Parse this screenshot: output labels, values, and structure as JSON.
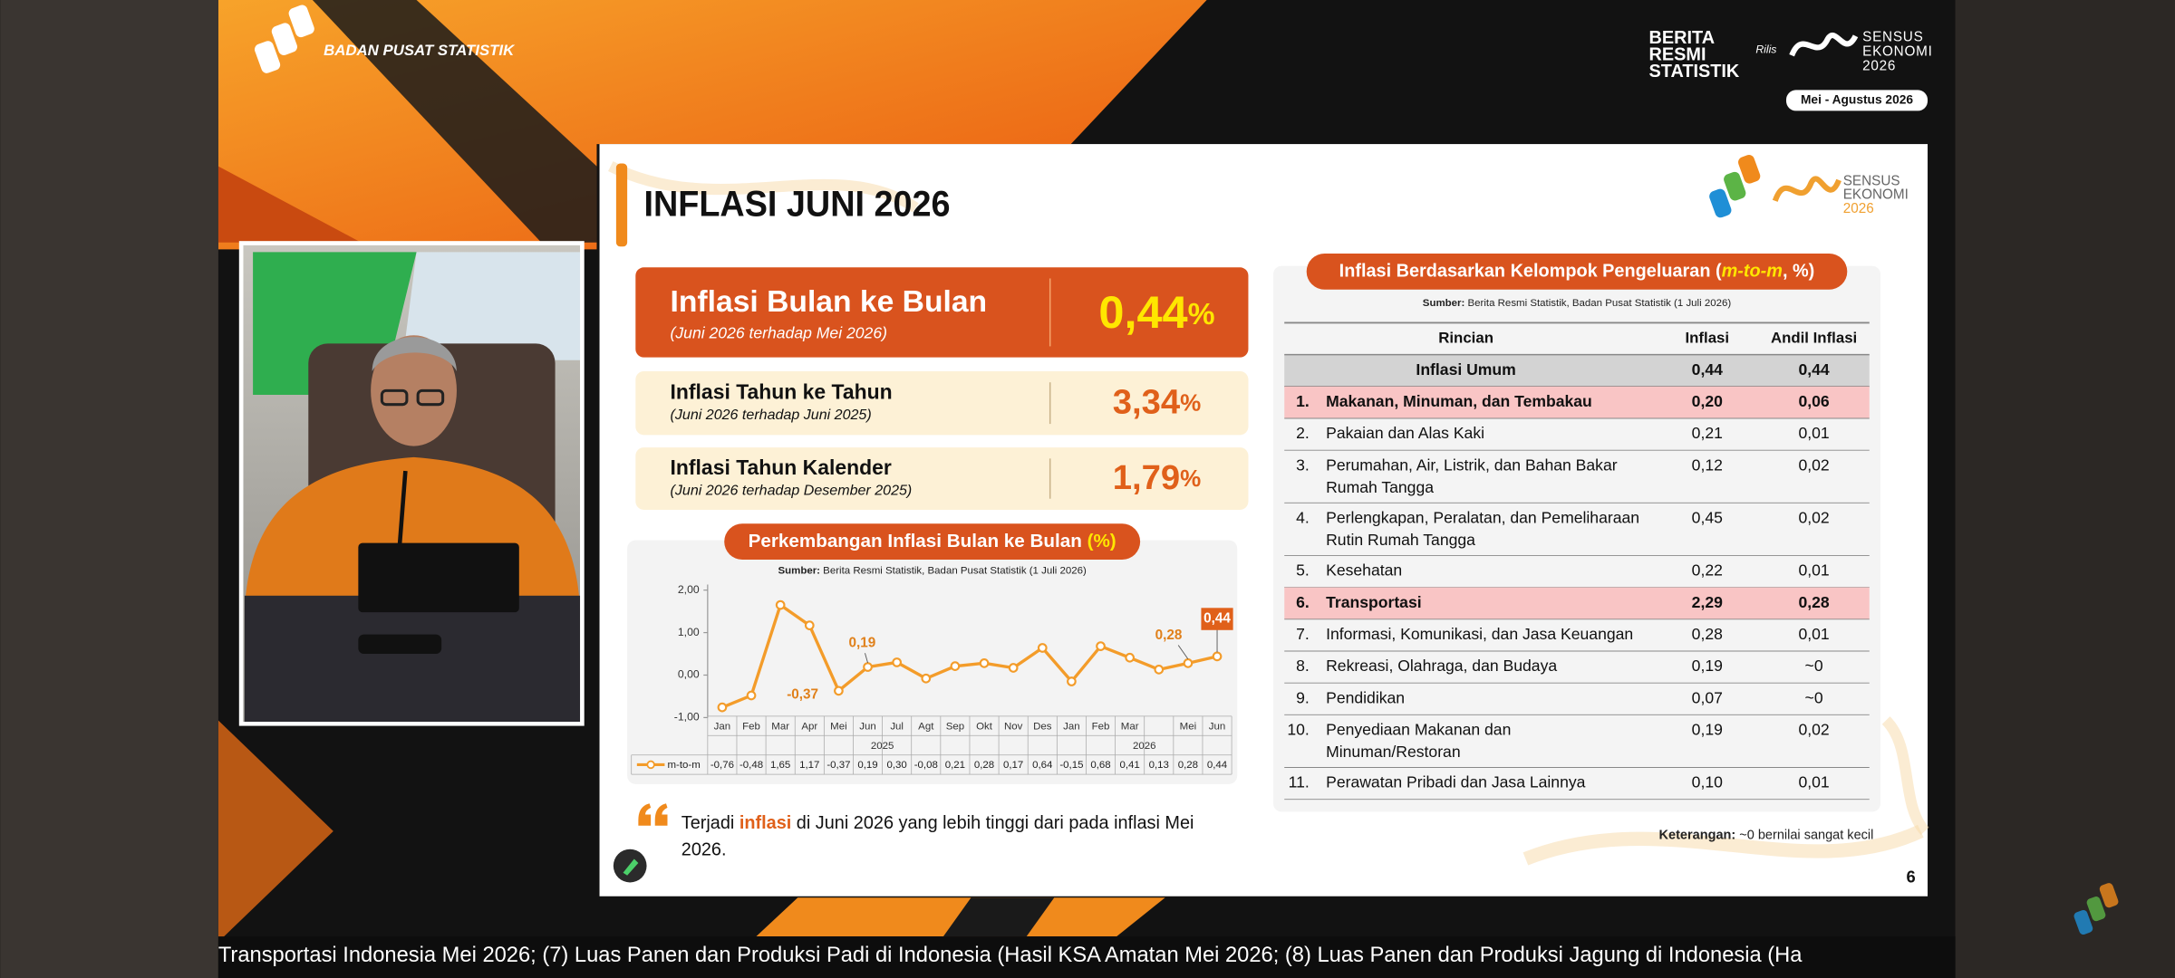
{
  "header": {
    "org": "BADAN PUSAT STATISTIK",
    "brs": [
      "BERITA",
      "RESMI",
      "STATISTIK"
    ],
    "rilis": "Rilis",
    "sensus": [
      "SENSUS",
      "EKONOMI",
      "2026"
    ],
    "period": "Mei - Agustus 2026"
  },
  "slide": {
    "title": "INFLASI JUNI 2026",
    "logo": [
      "SENSUS",
      "EKONOMI",
      "2026"
    ],
    "cards": [
      {
        "label": "Inflasi Bulan ke Bulan",
        "sub": "(Juni 2026 terhadap Mei 2026)",
        "value": "0,44",
        "unit": "%"
      },
      {
        "label": "Inflasi Tahun ke Tahun",
        "sub": "(Juni 2026 terhadap Juni 2025)",
        "value": "3,34",
        "unit": "%"
      },
      {
        "label": "Inflasi Tahun Kalender",
        "sub": "(Juni 2026 terhadap Desember 2025)",
        "value": "1,79",
        "unit": "%"
      }
    ],
    "note": [
      [
        "Terjadi ",
        "inflasi",
        " di Juni 2026 yang lebih tinggi dari pada inflasi Mei"
      ],
      [
        "2026."
      ]
    ],
    "page": "6"
  },
  "chart_data": {
    "type": "line",
    "title": [
      "Perkembangan Inflasi Bulan ke Bulan ",
      "(%)"
    ],
    "source": [
      "Sumber:",
      " Berita Resmi Statistik, Badan Pusat Statistik (1 Juli 2026)"
    ],
    "categories": [
      "Jan",
      "Feb",
      "Mar",
      "Apr",
      "Mei",
      "Jun",
      "Jul",
      "Agt",
      "Sep",
      "Okt",
      "Nov",
      "Des",
      "Jan",
      "Feb",
      "Mar",
      null,
      "Mei",
      "Jun"
    ],
    "x_groups": [
      {
        "label": "2025",
        "count": 12
      },
      {
        "label": "2026",
        "count": 6
      }
    ],
    "series": [
      {
        "name": "m-to-m",
        "color": "#f39c2a",
        "values": [
          -0.76,
          -0.48,
          1.65,
          1.17,
          -0.37,
          0.19,
          0.3,
          -0.08,
          0.21,
          0.28,
          0.17,
          0.64,
          -0.15,
          0.68,
          0.41,
          0.13,
          0.28,
          0.44
        ],
        "value_labels": [
          "-0,76",
          "-0,48",
          "1,65",
          "1,17",
          "-0,37",
          "0,19",
          "0,30",
          "-0,08",
          "0,21",
          "0,28",
          "0,17",
          "0,64",
          "-0,15",
          "0,68",
          "0,41",
          "0,13",
          "0,28",
          "0,44"
        ]
      }
    ],
    "annotated": [
      4,
      5,
      16,
      17
    ],
    "highlight": 17,
    "ylim": [
      -1,
      2
    ],
    "yticks": [
      {
        "value": -1,
        "label": "-1,00"
      },
      {
        "value": 0,
        "label": "0,00"
      },
      {
        "value": 1,
        "label": "1,00"
      },
      {
        "value": 2,
        "label": "2,00"
      }
    ],
    "grid": false
  },
  "table": {
    "title": [
      "Inflasi Berdasarkan Kelompok Pengeluaran (",
      "m-to-m",
      ", %)"
    ],
    "source": [
      "Sumber:",
      " Berita Resmi Statistik, Badan Pusat Statistik (1 Juli 2026)"
    ],
    "columns": [
      "Rincian",
      "Inflasi",
      "Andil Inflasi"
    ],
    "total": {
      "name": "Inflasi Umum",
      "inflasi": "0,44",
      "andil": "0,44"
    },
    "rows": [
      {
        "no": "1.",
        "name": [
          "Makanan, Minuman, dan Tembakau"
        ],
        "inflasi": "0,20",
        "andil": "0,06",
        "highlight": true
      },
      {
        "no": "2.",
        "name": [
          "Pakaian dan Alas Kaki"
        ],
        "inflasi": "0,21",
        "andil": "0,01"
      },
      {
        "no": "3.",
        "name": [
          "Perumahan, Air, Listrik, dan Bahan Bakar",
          "Rumah Tangga"
        ],
        "inflasi": "0,12",
        "andil": "0,02"
      },
      {
        "no": "4.",
        "name": [
          "Perlengkapan, Peralatan, dan Pemeliharaan",
          "Rutin Rumah Tangga"
        ],
        "inflasi": "0,45",
        "andil": "0,02"
      },
      {
        "no": "5.",
        "name": [
          "Kesehatan"
        ],
        "inflasi": "0,22",
        "andil": "0,01"
      },
      {
        "no": "6.",
        "name": [
          "Transportasi"
        ],
        "inflasi": "2,29",
        "andil": "0,28",
        "highlight": true
      },
      {
        "no": "7.",
        "name": [
          "Informasi, Komunikasi, dan Jasa Keuangan"
        ],
        "inflasi": "0,28",
        "andil": "0,01"
      },
      {
        "no": "8.",
        "name": [
          "Rekreasi, Olahraga, dan Budaya"
        ],
        "inflasi": "0,19",
        "andil": "~0"
      },
      {
        "no": "9.",
        "name": [
          "Pendidikan"
        ],
        "inflasi": "0,07",
        "andil": "~0"
      },
      {
        "no": "10.",
        "name": [
          "Penyediaan Makanan dan",
          "Minuman/Restoran"
        ],
        "inflasi": "0,19",
        "andil": "0,02"
      },
      {
        "no": "11.",
        "name": [
          "Perawatan Pribadi dan Jasa Lainnya"
        ],
        "inflasi": "0,10",
        "andil": "0,01"
      }
    ],
    "footnote": [
      "Keterangan:",
      " ~0 bernilai sangat kecil"
    ]
  },
  "ticker": "Transportasi Indonesia Mei 2026; (7) Luas Panen dan Produksi Padi di Indonesia (Hasil KSA Amatan Mei 2026; (8) Luas Panen dan Produksi  Jagung di Indonesia (Ha"
}
